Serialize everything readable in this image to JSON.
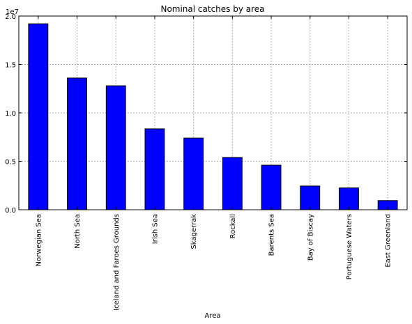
{
  "chart_data": {
    "type": "bar",
    "title": "Nominal catches by area",
    "xlabel": "Area",
    "ylabel": "",
    "scale_label": "1e7",
    "categories": [
      "Norwegian Sea",
      "North Sea",
      "Iceland and Faroes Grounds",
      "Irish Sea",
      "Skagerrak",
      "Rockall",
      "Barents Sea",
      "Bay of Biscay",
      "Portuguese Waters",
      "East Greenland"
    ],
    "values": [
      19200000,
      13600000,
      12800000,
      8350000,
      7400000,
      5400000,
      4600000,
      2450000,
      2250000,
      950000
    ],
    "ylim": [
      0,
      20000000
    ],
    "yticks": [
      0,
      5000000,
      10000000,
      15000000,
      20000000
    ],
    "ytick_labels": [
      "0.0",
      "0.5",
      "1.0",
      "1.5",
      "2.0"
    ],
    "grid": true,
    "colors": {
      "bar_fill": "#0000ff",
      "bar_edge": "#000000",
      "grid": "#b0b0b0"
    }
  }
}
